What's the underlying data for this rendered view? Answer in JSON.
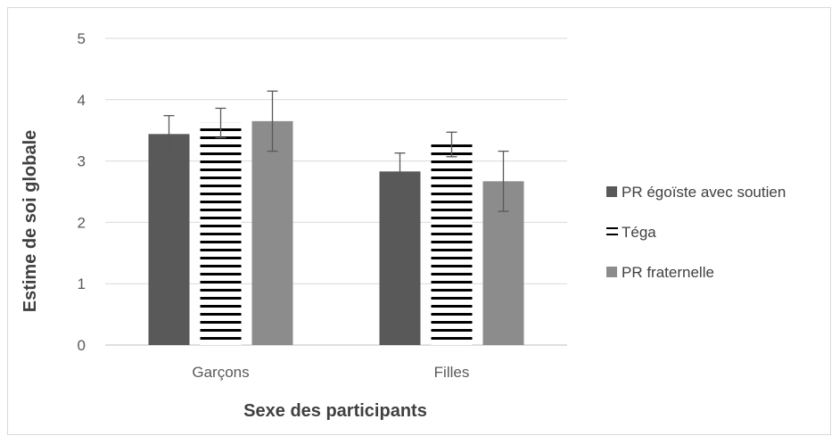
{
  "chart_data": {
    "type": "bar",
    "title": "",
    "xlabel": "Sexe des participants",
    "ylabel": "Estime de soi globale",
    "ylim": [
      0,
      5
    ],
    "yticks": [
      "0",
      "1",
      "2",
      "3",
      "4",
      "5"
    ],
    "categories": [
      "Garçons",
      "Filles"
    ],
    "grid": true,
    "legend_position": "right",
    "series": [
      {
        "name": "PR égoïste avec soutien",
        "values": [
          3.44,
          2.83
        ],
        "errors": [
          0.3,
          0.3
        ],
        "color": "#595959",
        "pattern": "solid"
      },
      {
        "name": "Téga",
        "values": [
          3.62,
          3.27
        ],
        "errors": [
          0.24,
          0.2
        ],
        "color": "#000000",
        "pattern": "horizontal-stripes"
      },
      {
        "name": "PR fraternelle",
        "values": [
          3.65,
          2.67
        ],
        "errors": [
          0.49,
          0.49
        ],
        "color": "#8c8c8c",
        "pattern": "solid"
      }
    ]
  }
}
